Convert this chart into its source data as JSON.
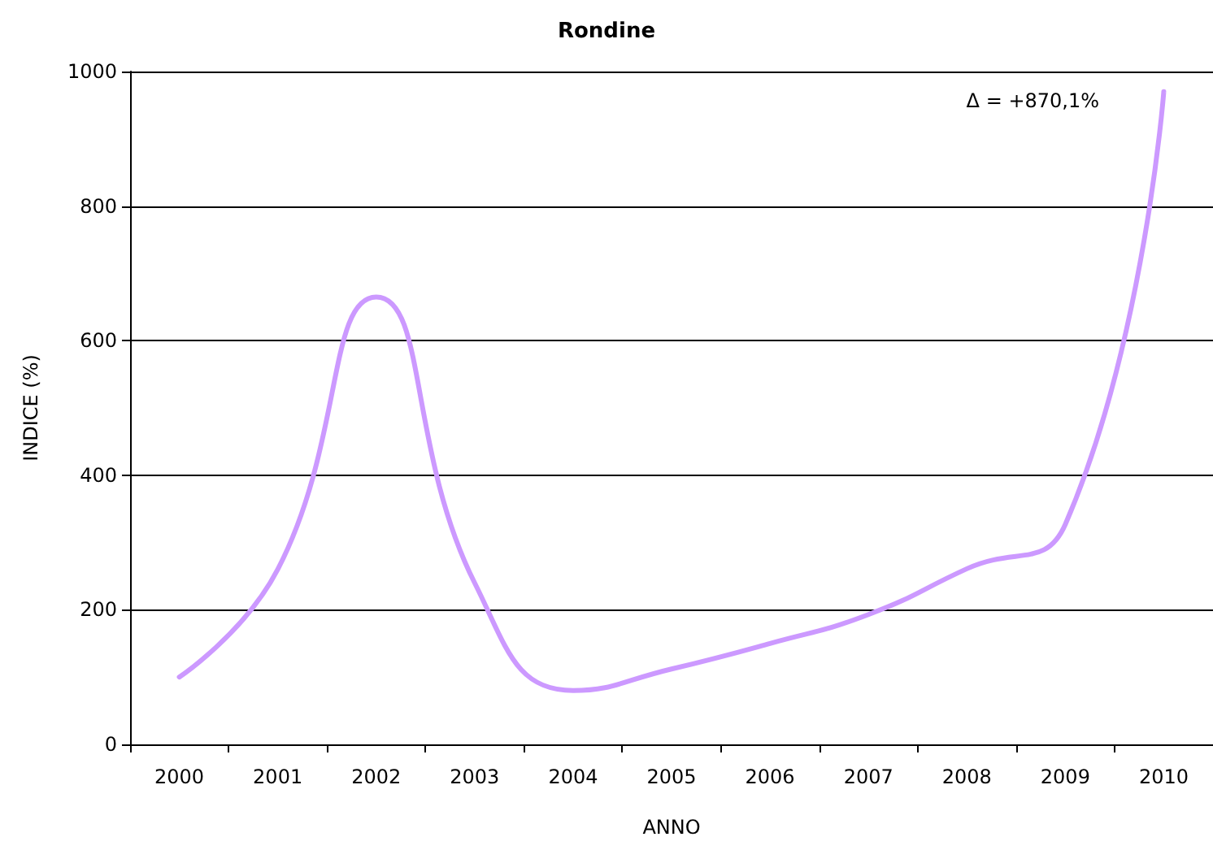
{
  "chart_data": {
    "type": "line",
    "title": "Rondine",
    "xlabel": "ANNO",
    "ylabel": "INDICE (%)",
    "categories": [
      "2000",
      "2001",
      "2002",
      "2003",
      "2004",
      "2005",
      "2006",
      "2007",
      "2008",
      "2009",
      "2010"
    ],
    "series": [
      {
        "color": "#cc99ff",
        "values": [
          100,
          260,
          665,
          240,
          80,
          112,
          150,
          193,
          261,
          327,
          970
        ]
      }
    ],
    "ylim": [
      0,
      1000
    ],
    "yticks": [
      0,
      200,
      400,
      600,
      800,
      1000
    ],
    "grid": "y",
    "marker": "none",
    "line_style": "solid",
    "annotations": [
      "Δ = +870,1%"
    ]
  }
}
